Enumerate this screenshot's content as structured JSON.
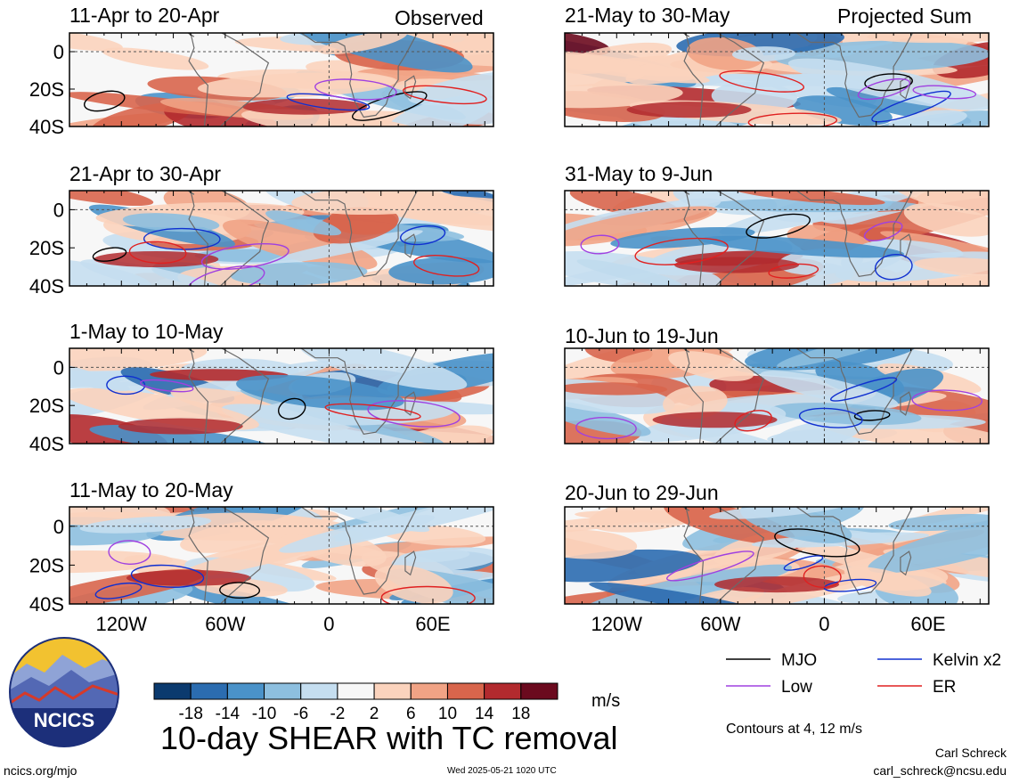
{
  "chart_data": {
    "type": "heatmap",
    "title": "10-day SHEAR with TC removal",
    "corner_labels": {
      "left": "Observed",
      "right": "Projected Sum"
    },
    "panels": [
      {
        "column": "Observed",
        "label": "11-Apr to 20-Apr"
      },
      {
        "column": "Observed",
        "label": "21-Apr to 30-Apr"
      },
      {
        "column": "Observed",
        "label": "1-May to 10-May"
      },
      {
        "column": "Observed",
        "label": "11-May to 20-May"
      },
      {
        "column": "Projected Sum",
        "label": "21-May to 30-May"
      },
      {
        "column": "Projected Sum",
        "label": "31-May to 9-Jun"
      },
      {
        "column": "Projected Sum",
        "label": "10-Jun to 19-Jun"
      },
      {
        "column": "Projected Sum",
        "label": "20-Jun to 29-Jun"
      }
    ],
    "x_ticks": [
      {
        "value": -120,
        "label": "120W"
      },
      {
        "value": -60,
        "label": "60W"
      },
      {
        "value": 0,
        "label": "0"
      },
      {
        "value": 60,
        "label": "60E"
      }
    ],
    "y_ticks": [
      {
        "value": 0,
        "label": "0"
      },
      {
        "value": -20,
        "label": "20S"
      },
      {
        "value": -40,
        "label": "40S"
      }
    ],
    "xlim": [
      -150,
      95
    ],
    "ylim": [
      -40,
      10
    ],
    "colorbar": {
      "unit": "m/s",
      "tick_labels": [
        "-18",
        "-14",
        "-10",
        "-6",
        "-2",
        "2",
        "6",
        "10",
        "14",
        "18"
      ],
      "colors": [
        "#0b3a6e",
        "#2b6cb0",
        "#4a92c9",
        "#8dbfdf",
        "#c5def0",
        "#f7f7f7",
        "#fbd3bd",
        "#f1a385",
        "#d8654c",
        "#b22a2e",
        "#6b0a1e"
      ]
    },
    "legend": [
      {
        "name": "MJO",
        "color": "#000000"
      },
      {
        "name": "Kelvin x2",
        "color": "#1030d0"
      },
      {
        "name": "Low",
        "color": "#a040e0"
      },
      {
        "name": "ER",
        "color": "#e02020"
      }
    ],
    "contour_note": "Contours at 4, 12 m/s"
  },
  "footer": {
    "site": "ncics.org/mjo",
    "timestamp": "Wed 2025-05-21 1020 UTC",
    "author": "Carl Schreck",
    "email": "carl_schreck@ncsu.edu",
    "logo_text": "NCICS"
  }
}
